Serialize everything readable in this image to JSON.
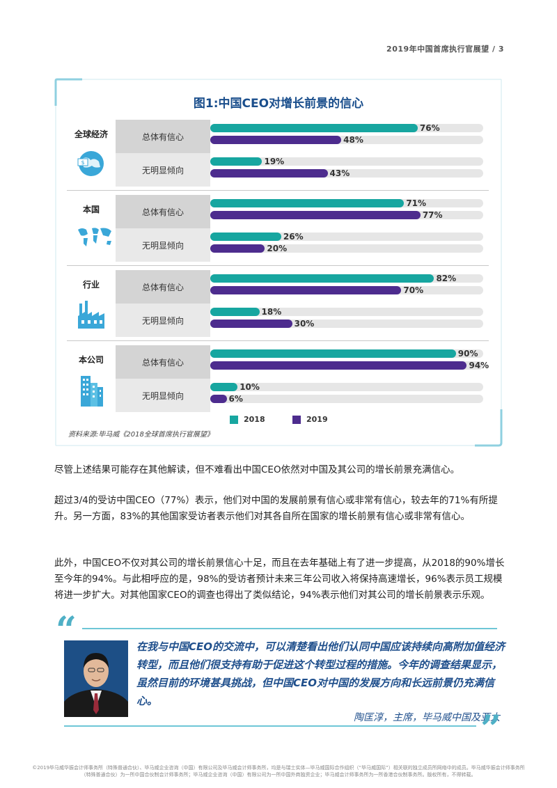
{
  "header": {
    "page_title": "2019年中国首席执行官展望 / 3"
  },
  "figure": {
    "title": "图1:中国CEO对增长前景的信心",
    "source": "资料来源:毕马威《2018全球首席执行官展望》",
    "colors": {
      "2018": "#17a6a0",
      "2019": "#4d2c8e"
    },
    "groups": [
      {
        "label": "全球经济",
        "icon": "globe-money-icon",
        "rows": [
          {
            "label": "总体有信心",
            "values_label": [
              "76%",
              "48%"
            ]
          },
          {
            "label": "无明显倾向",
            "values_label": [
              "19%",
              "43%"
            ]
          }
        ]
      },
      {
        "label": "本国",
        "icon": "world-map-icon",
        "rows": [
          {
            "label": "总体有信心",
            "values_label": [
              "71%",
              "77%"
            ]
          },
          {
            "label": "无明显倾向",
            "values_label": [
              "26%",
              "20%"
            ]
          }
        ]
      },
      {
        "label": "行业",
        "icon": "factory-icon",
        "rows": [
          {
            "label": "总体有信心",
            "values_label": [
              "82%",
              "70%"
            ]
          },
          {
            "label": "无明显倾向",
            "values_label": [
              "18%",
              "30%"
            ]
          }
        ]
      },
      {
        "label": "本公司",
        "icon": "office-building-icon",
        "rows": [
          {
            "label": "总体有信心",
            "values_label": [
              "90%",
              "94%"
            ]
          },
          {
            "label": "无明显倾向",
            "values_label": [
              "10%",
              "6%"
            ]
          }
        ]
      }
    ],
    "legend": [
      "2018",
      "2019"
    ]
  },
  "chart_data": {
    "type": "bar",
    "title": "图1:中国CEO对增长前景的信心",
    "groups": [
      "全球经济",
      "本国",
      "行业",
      "本公司"
    ],
    "subcategories": [
      "总体有信心",
      "无明显倾向"
    ],
    "series": [
      {
        "name": "2018",
        "values": [
          [
            76,
            19
          ],
          [
            71,
            26
          ],
          [
            82,
            18
          ],
          [
            90,
            10
          ]
        ]
      },
      {
        "name": "2019",
        "values": [
          [
            48,
            43
          ],
          [
            77,
            20
          ],
          [
            70,
            30
          ],
          [
            94,
            6
          ]
        ]
      }
    ],
    "unit": "%",
    "xlim": [
      0,
      100
    ],
    "legend_position": "bottom"
  },
  "body": {
    "p1": "尽管上述结果可能存在其他解读，但不难看出中国CEO依然对中国及其公司的增长前景充满信心。",
    "p2": "超过3/4的受访中国CEO（77%）表示，他们对中国的发展前景有信心或非常有信心，较去年的71%有所提升。另一方面，83%的其他国家受访者表示他们对其各自所在国家的增长前景有信心或非常有信心。",
    "p3": "此外，中国CEO不仅对其公司的增长前景信心十足，而且在去年基础上有了进一步提高，从2018的90%增长至今年的94%。与此相呼应的是，98%的受访者预计未来三年公司收入将保持高速增长，96%表示员工规模将进一步扩大。对其他国家CEO的调查也得出了类似结论，94%表示他们对其公司的增长前景表示乐观。"
  },
  "quote": {
    "text": "在我与中国CEO的交流中，可以清楚看出他们认同中国应该持续向高附加值经济转型，而且他们很支持有助于促进这个转型过程的措施。今年的调查结果显示，虽然目前的环境甚具挑战，但中国CEO对中国的发展方向和长远前景仍充满信心。",
    "author": "陶匡淳，主席，毕马威中国及亚太"
  },
  "footer": {
    "line1": "©2019毕马威华振会计师事务所（特殊普通合伙）、毕马威企业咨询（中国）有限公司及毕马威会计师事务所，均是与瑞士实体—毕马威国际合作组织（“毕马威国际”）相关联的独立成员所网络中的成员。毕马威华振会计师事务所",
    "line2": "（特殊普通合伙）为一所中国合伙制会计师事务所；毕马威企业咨询（中国）有限公司为一所中国外商独资企业；毕马威会计师事务所为一所香港合伙制事务所。版权所有，不得转载。"
  }
}
